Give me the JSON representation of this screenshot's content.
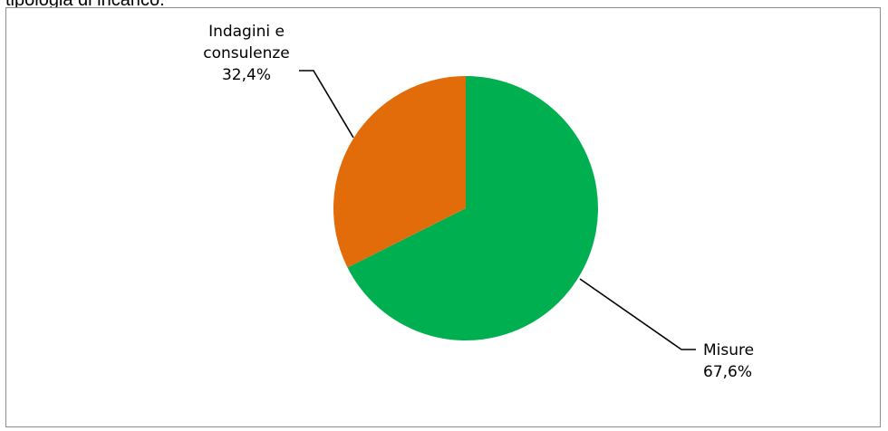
{
  "header": {
    "caption_fragment": "tipologia di incarico."
  },
  "chart_data": {
    "type": "pie",
    "title": "",
    "slices": [
      {
        "label_lines": [
          "Misure",
          "67,6%"
        ],
        "category": "Misure",
        "value": 67.6,
        "color": "#00b050"
      },
      {
        "label_lines": [
          "Indagini e",
          "consulenze",
          "32,4%"
        ],
        "category": "Indagini e consulenze",
        "value": 32.4,
        "color": "#e36c0a"
      }
    ],
    "start_angle_deg": 0,
    "direction": "clockwise",
    "legend": "none"
  }
}
